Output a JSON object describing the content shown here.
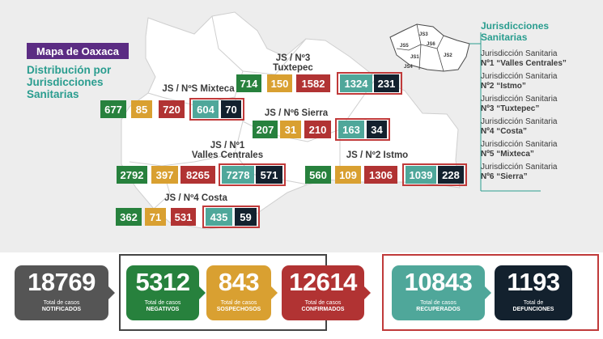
{
  "header": {
    "title": "Mapa de Oaxaca",
    "subtitle": [
      "Distribución por",
      "Jurisdicciones",
      "Sanitarias"
    ]
  },
  "colors": {
    "negativos": "#27813d",
    "sospechosos": "#d9a031",
    "confirmados": "#b13333",
    "recuperados": "#4fa79a",
    "defunciones": "#13212e",
    "notificados": "#555555",
    "accent": "#2a9d8f",
    "title_bg": "#5b2c83"
  },
  "jurisdictions": {
    "tuxtepec": {
      "label": [
        "JS / Nº3",
        "Tuxtepec"
      ],
      "negativos": "714",
      "sospechosos": "150",
      "confirmados": "1582",
      "recuperados": "1324",
      "defunciones": "231"
    },
    "mixteca": {
      "label": [
        "JS / NºS Mixteca"
      ],
      "negativos": "677",
      "sospechosos": "85",
      "confirmados": "720",
      "recuperados": "604",
      "defunciones": "70"
    },
    "sierra": {
      "label": [
        "JS / Nº6 Sierra"
      ],
      "negativos": "207",
      "sospechosos": "31",
      "confirmados": "210",
      "recuperados": "163",
      "defunciones": "34"
    },
    "valles": {
      "label": [
        "JS / Nº1",
        "Valles Centrales"
      ],
      "negativos": "2792",
      "sospechosos": "397",
      "confirmados": "8265",
      "recuperados": "7278",
      "defunciones": "571"
    },
    "istmo": {
      "label": [
        "JS / Nº2 Istmo"
      ],
      "negativos": "560",
      "sospechosos": "109",
      "confirmados": "1306",
      "recuperados": "1039",
      "defunciones": "228"
    },
    "costa": {
      "label": [
        "JS / Nº4 Costa"
      ],
      "negativos": "362",
      "sospechosos": "71",
      "confirmados": "531",
      "recuperados": "435",
      "defunciones": "59"
    }
  },
  "mini_map_labels": [
    "JS3",
    "JS6",
    "JS2",
    "JS5",
    "JS1",
    "JS4"
  ],
  "legend": {
    "title": [
      "Jurisdicciones",
      "Sanitarias"
    ],
    "items": [
      {
        "prefix": "Jurisdicción Sanitaria",
        "name": "Nº1 “Valles Centrales”"
      },
      {
        "prefix": "Jurisdicción Sanitaria",
        "name": "Nº2 “Istmo”"
      },
      {
        "prefix": "Jurisdicción Sanitaria",
        "name": "Nº3 “Tuxtepec”"
      },
      {
        "prefix": "Jurisdicción Sanitaria",
        "name": "Nº4 “Costa”"
      },
      {
        "prefix": "Jurisdicción Sanitaria",
        "name": "Nº5 “Mixteca”"
      },
      {
        "prefix": "Jurisdicción Sanitaria",
        "name": "Nº6 “Sierra”"
      }
    ]
  },
  "totals": {
    "notificados": {
      "value": "18769",
      "line1": "Total de casos",
      "line2": "NOTIFICADOS"
    },
    "negativos": {
      "value": "5312",
      "line1": "Total de casos",
      "line2": "NEGATIVOS"
    },
    "sospechosos": {
      "value": "843",
      "line1": "Total de casos",
      "line2": "SOSPECHOSOS"
    },
    "confirmados": {
      "value": "12614",
      "line1": "Total de casos",
      "line2": "CONFIRMADOS"
    },
    "recuperados": {
      "value": "10843",
      "line1": "Total de casos",
      "line2": "RECUPERADOS"
    },
    "defunciones": {
      "value": "1193",
      "line1": "Total de",
      "line2": "DEFUNCIONES"
    }
  }
}
